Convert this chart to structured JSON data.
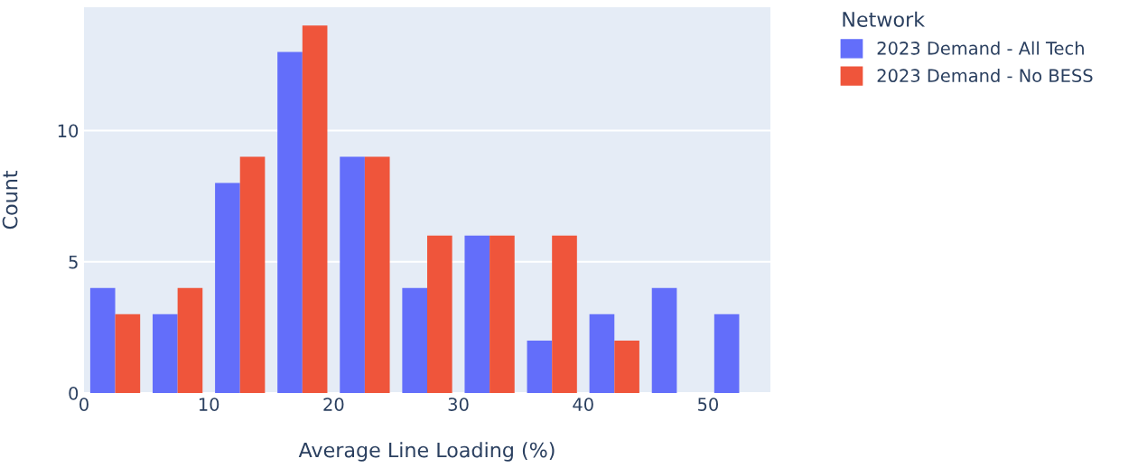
{
  "chart_data": {
    "type": "histogram",
    "xlabel": "Average Line Loading (%)",
    "ylabel": "Count",
    "legend_title": "Network",
    "bins": [
      0,
      5,
      10,
      15,
      20,
      25,
      30,
      35,
      40,
      45,
      50,
      55
    ],
    "series": [
      {
        "name": "2023 Demand - All Tech",
        "color": "#636efa",
        "values": [
          4,
          3,
          8,
          13,
          9,
          4,
          6,
          2,
          3,
          4,
          3
        ]
      },
      {
        "name": "2023 Demand - No BESS",
        "color": "#ef553b",
        "values": [
          3,
          4,
          9,
          14,
          9,
          6,
          6,
          6,
          2,
          0,
          0
        ]
      }
    ],
    "xlim": [
      0,
      55
    ],
    "ylim": [
      0,
      14.7
    ],
    "xticks": [
      0,
      10,
      20,
      30,
      40,
      50
    ],
    "yticks": [
      0,
      5,
      10
    ],
    "grid": "y",
    "legend": "top right"
  }
}
